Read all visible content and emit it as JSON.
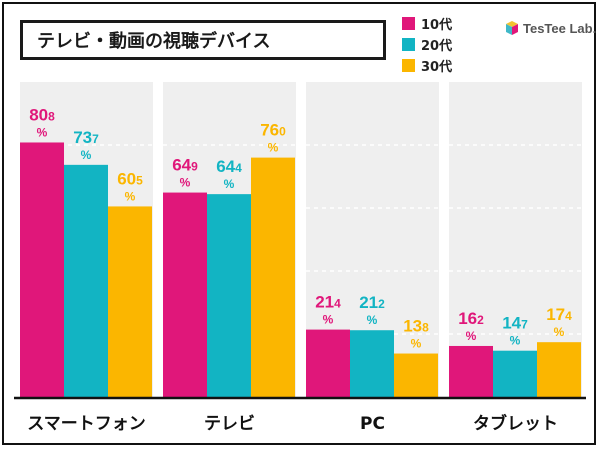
{
  "title": "テレビ・動画の視聴デバイス",
  "logo": {
    "text": "TesTee Lab.",
    "icon": "cube-logo-icon"
  },
  "legend": [
    {
      "label": "10代",
      "color": "#e0177a"
    },
    {
      "label": "20代",
      "color": "#12b4c3"
    },
    {
      "label": "30代",
      "color": "#fbb600"
    }
  ],
  "unit": "%",
  "chart_data": {
    "type": "bar",
    "title": "テレビ・動画の視聴デバイス",
    "categories": [
      "スマートフォン",
      "テレビ",
      "PC",
      "タブレット"
    ],
    "series": [
      {
        "name": "10代",
        "values": [
          80.8,
          64.9,
          21.4,
          16.2
        ]
      },
      {
        "name": "20代",
        "values": [
          73.7,
          64.4,
          21.2,
          14.7
        ]
      },
      {
        "name": "30代",
        "values": [
          60.5,
          76.0,
          13.8,
          17.4
        ]
      }
    ],
    "ylim": [
      0,
      100
    ],
    "grid": true,
    "legend_position": "top-right",
    "value_unit": "%"
  }
}
